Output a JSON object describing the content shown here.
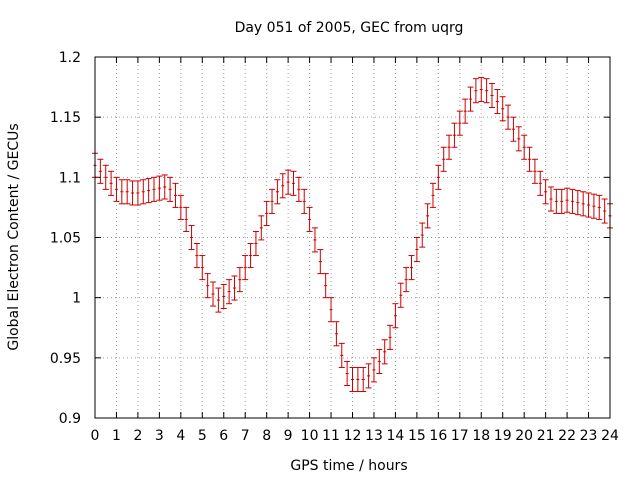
{
  "chart_data": {
    "type": "scatter",
    "title": "Day 051 of 2005, GEC from uqrg",
    "xlabel": "GPS time / hours",
    "ylabel": "Global Electron Content / GECUs",
    "xlim": [
      0,
      24
    ],
    "ylim": [
      0.9,
      1.2
    ],
    "x_ticks": [
      "0",
      "1",
      "2",
      "3",
      "4",
      "5",
      "6",
      "7",
      "8",
      "9",
      "10",
      "11",
      "12",
      "13",
      "14",
      "15",
      "16",
      "17",
      "18",
      "19",
      "20",
      "21",
      "22",
      "23",
      "24"
    ],
    "y_ticks": [
      "0.9",
      "0.95",
      "1",
      "1.05",
      "1.1",
      "1.15",
      "1.2"
    ],
    "grid": true,
    "error": 0.01,
    "color": "#cc0000",
    "series": [
      {
        "x": [
          0,
          0.25,
          0.5,
          0.75,
          1,
          1.25,
          1.5,
          1.75,
          2,
          2.25,
          2.5,
          2.75,
          3,
          3.25,
          3.5,
          3.75,
          4,
          4.25,
          4.5,
          4.75,
          5,
          5.25,
          5.5,
          5.75,
          6,
          6.25,
          6.5,
          6.75,
          7,
          7.25,
          7.5,
          7.75,
          8,
          8.25,
          8.5,
          8.75,
          9,
          9.25,
          9.5,
          9.75,
          10,
          10.25,
          10.5,
          10.75,
          11,
          11.25,
          11.5,
          11.75,
          12,
          12.25,
          12.5,
          12.75,
          13,
          13.25,
          13.5,
          13.75,
          14,
          14.25,
          14.5,
          14.75,
          15,
          15.25,
          15.5,
          15.75,
          16,
          16.25,
          16.5,
          16.75,
          17,
          17.25,
          17.5,
          17.75,
          18,
          18.25,
          18.5,
          18.75,
          19,
          19.25,
          19.5,
          19.75,
          20,
          20.25,
          20.5,
          20.75,
          21,
          21.25,
          21.5,
          21.75,
          22,
          22.25,
          22.5,
          22.75,
          23,
          23.25,
          23.5,
          23.75,
          24
        ],
        "y": [
          1.11,
          1.105,
          1.1,
          1.095,
          1.09,
          1.088,
          1.088,
          1.087,
          1.087,
          1.088,
          1.089,
          1.09,
          1.091,
          1.092,
          1.09,
          1.085,
          1.075,
          1.065,
          1.05,
          1.035,
          1.025,
          1.01,
          1.003,
          0.998,
          1.001,
          1.005,
          1.008,
          1.015,
          1.025,
          1.035,
          1.045,
          1.058,
          1.07,
          1.08,
          1.088,
          1.093,
          1.096,
          1.095,
          1.09,
          1.08,
          1.065,
          1.048,
          1.03,
          1.01,
          0.99,
          0.97,
          0.952,
          0.937,
          0.932,
          0.932,
          0.932,
          0.935,
          0.94,
          0.947,
          0.955,
          0.967,
          0.985,
          1.002,
          1.015,
          1.025,
          1.04,
          1.052,
          1.068,
          1.085,
          1.1,
          1.115,
          1.125,
          1.135,
          1.145,
          1.155,
          1.165,
          1.172,
          1.173,
          1.172,
          1.168,
          1.163,
          1.157,
          1.15,
          1.14,
          1.132,
          1.125,
          1.115,
          1.105,
          1.095,
          1.088,
          1.082,
          1.08,
          1.08,
          1.081,
          1.08,
          1.079,
          1.078,
          1.077,
          1.076,
          1.075,
          1.072,
          1.068
        ]
      }
    ]
  }
}
